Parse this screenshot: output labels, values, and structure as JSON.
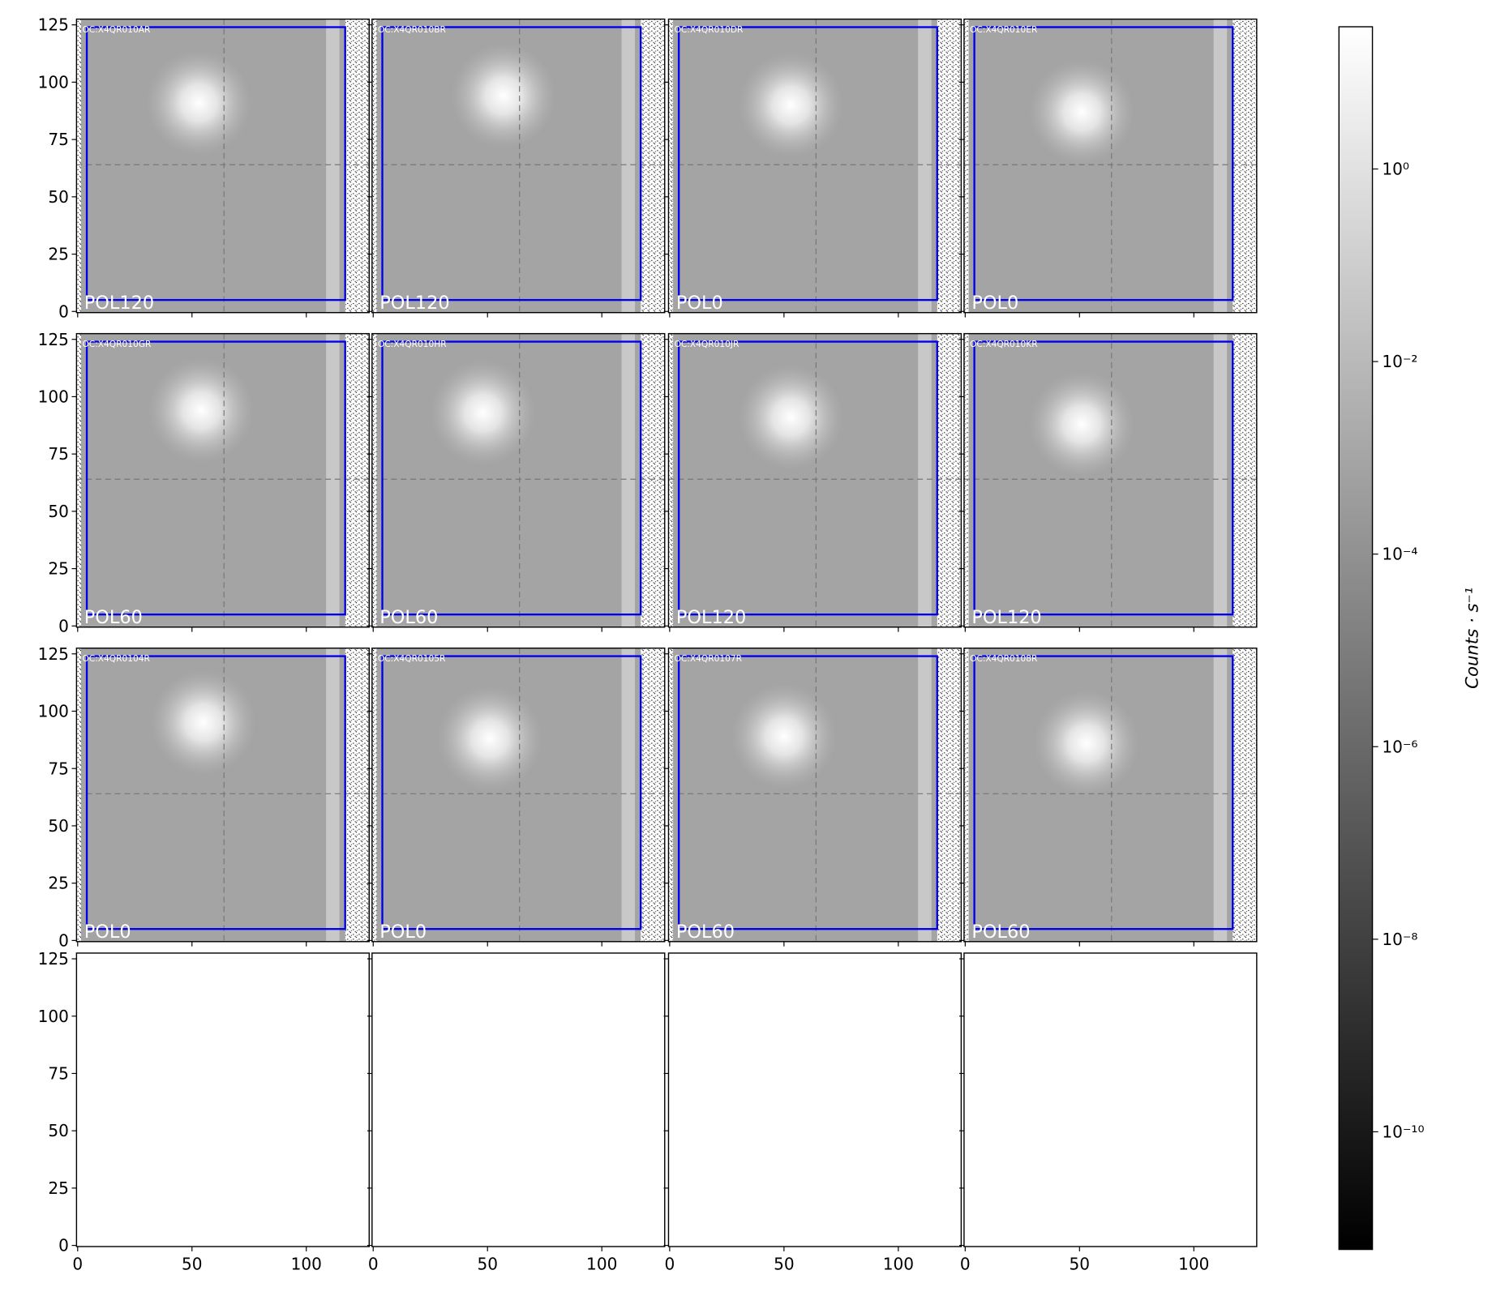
{
  "chart_data": {
    "type": "image",
    "xlim": [
      -0.5,
      127.5
    ],
    "ylim": [
      -0.5,
      127.5
    ],
    "xticks": [
      0,
      50,
      100
    ],
    "yticks": [
      0,
      25,
      50,
      75,
      100,
      125
    ],
    "crosshair": [
      64,
      64
    ],
    "box": {
      "x": [
        4,
        117
      ],
      "y": [
        5,
        124
      ],
      "color": "#0000ee"
    },
    "colorbar": {
      "label": "Counts · s⁻¹",
      "scale": "log",
      "lim": [
        6e-12,
        30
      ],
      "ticks": [
        {
          "value": 1e-10,
          "label": "10⁻¹⁰"
        },
        {
          "value": 1e-08,
          "label": "10⁻⁸"
        },
        {
          "value": 1e-06,
          "label": "10⁻⁶"
        },
        {
          "value": 0.0001,
          "label": "10⁻⁴"
        },
        {
          "value": 0.01,
          "label": "10⁻²"
        },
        {
          "value": 1,
          "label": "10⁰"
        }
      ]
    },
    "panels": [
      {
        "title": "OC:X4QR010AR",
        "filter": "POL120",
        "peak": [
          53,
          91
        ]
      },
      {
        "title": "OC:X4QR010BR",
        "filter": "POL120",
        "peak": [
          57,
          94
        ]
      },
      {
        "title": "OC:X4QR010DR",
        "filter": "POL0",
        "peak": [
          53,
          90
        ]
      },
      {
        "title": "OC:X4QR010ER",
        "filter": "POL0",
        "peak": [
          51,
          87
        ]
      },
      {
        "title": "OC:X4QR010GR",
        "filter": "POL60",
        "peak": [
          54,
          94
        ]
      },
      {
        "title": "OC:X4QR010HR",
        "filter": "POL60",
        "peak": [
          48,
          93
        ]
      },
      {
        "title": "OC:X4QR010JR",
        "filter": "POL120",
        "peak": [
          53,
          91
        ]
      },
      {
        "title": "OC:X4QR010KR",
        "filter": "POL120",
        "peak": [
          51,
          88
        ]
      },
      {
        "title": "OC:X4QR0104R",
        "filter": "POL0",
        "peak": [
          55,
          95
        ]
      },
      {
        "title": "OC:X4QR0105R",
        "filter": "POL0",
        "peak": [
          51,
          88
        ]
      },
      {
        "title": "OC:X4QR0107R",
        "filter": "POL60",
        "peak": [
          50,
          89
        ]
      },
      {
        "title": "OC:X4QR0108R",
        "filter": "POL60",
        "peak": [
          53,
          86
        ]
      }
    ]
  }
}
